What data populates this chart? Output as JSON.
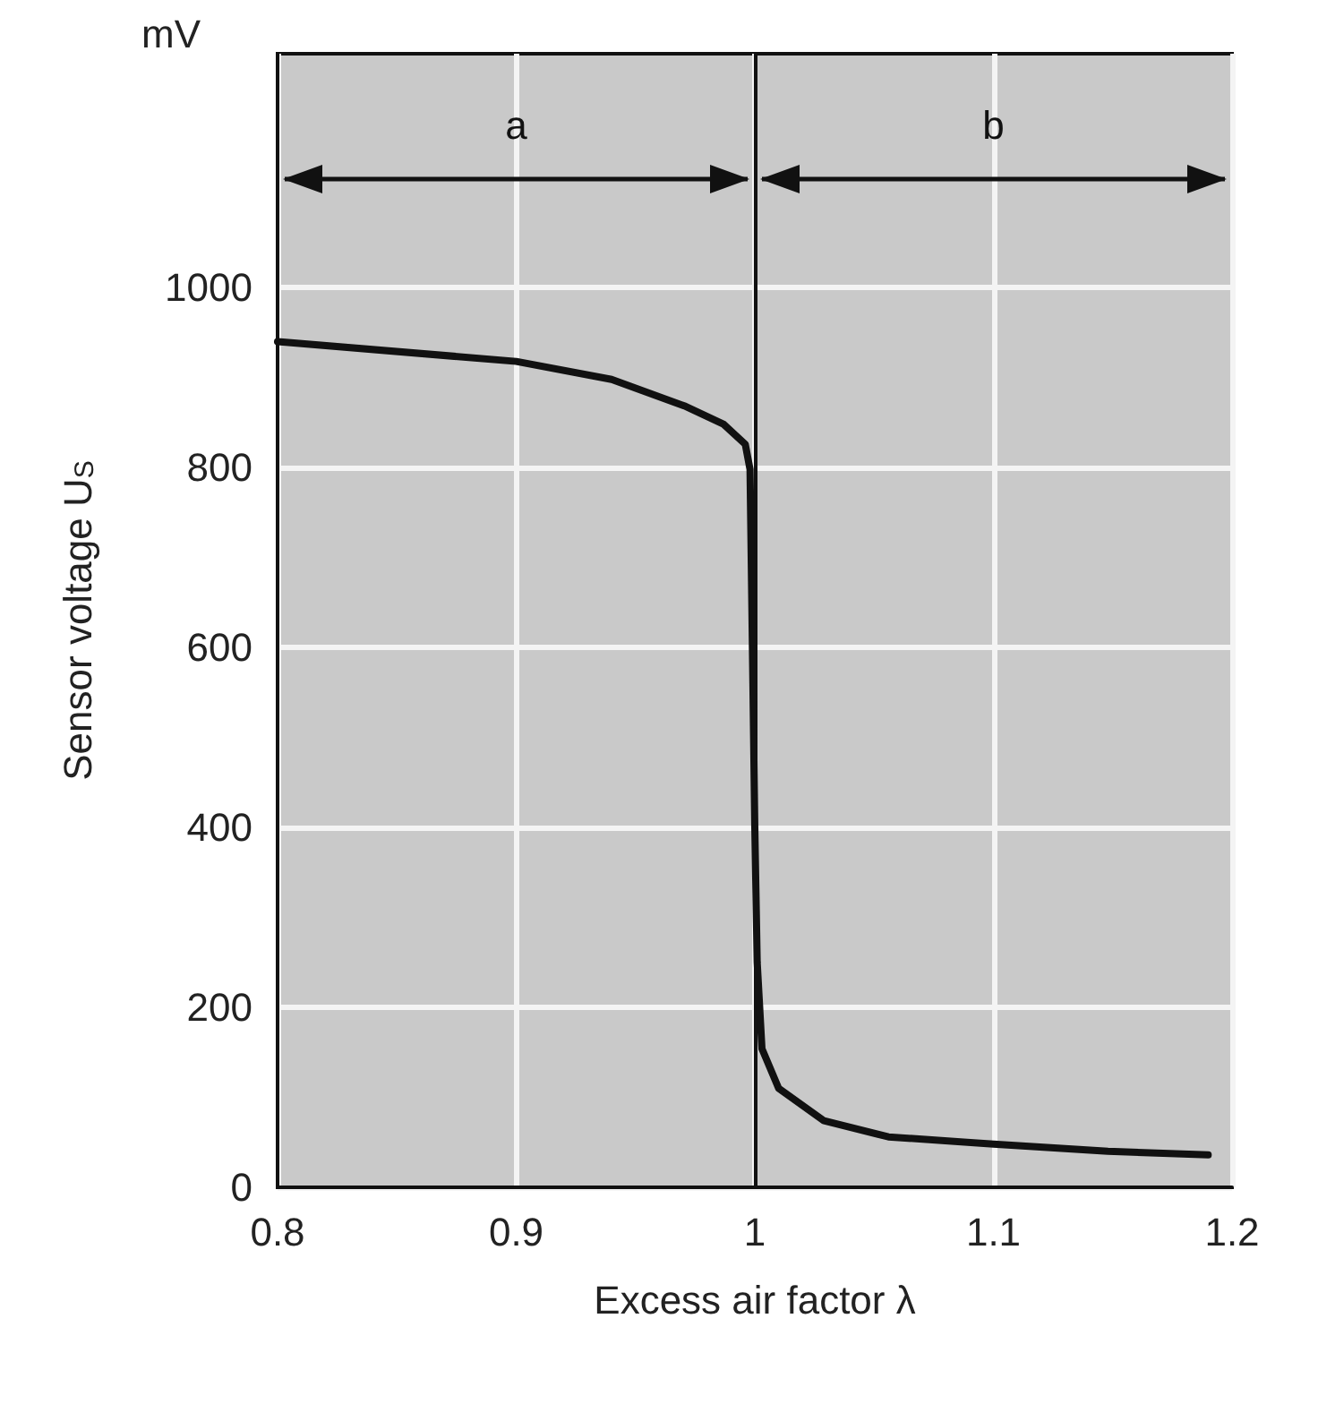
{
  "chart_data": {
    "type": "line",
    "xlabel": "Excess air factor λ",
    "ylabel": "Sensor voltage U$_{S}$",
    "x": [
      0.8,
      0.9,
      0.94,
      0.971,
      0.987,
      0.996,
      0.998,
      0.999,
      1.0,
      1.001,
      1.003,
      1.01,
      1.029,
      1.056,
      1.1,
      1.148,
      1.19
    ],
    "series": [
      {
        "color": "#111111",
        "values": [
          940,
          918,
          898,
          868,
          848,
          826,
          798,
          600,
          400,
          250,
          154,
          110,
          74,
          56,
          48,
          40,
          36
        ]
      }
    ],
    "xlim": [
      0.8,
      1.2
    ],
    "xticks": [
      0.8,
      0.9,
      {
        "value": 1,
        "label": "1"
      },
      1.1,
      1.2
    ],
    "ylim": [
      0,
      1260
    ],
    "yticks": [
      0,
      200,
      400,
      600,
      800,
      1000
    ],
    "ref_lines": [
      {
        "axis": "x",
        "value": 1,
        "color": "#111111"
      }
    ],
    "annotations": [
      "mV",
      "a",
      "b"
    ],
    "grid": true,
    "marker": "none",
    "line_style": "solid"
  }
}
